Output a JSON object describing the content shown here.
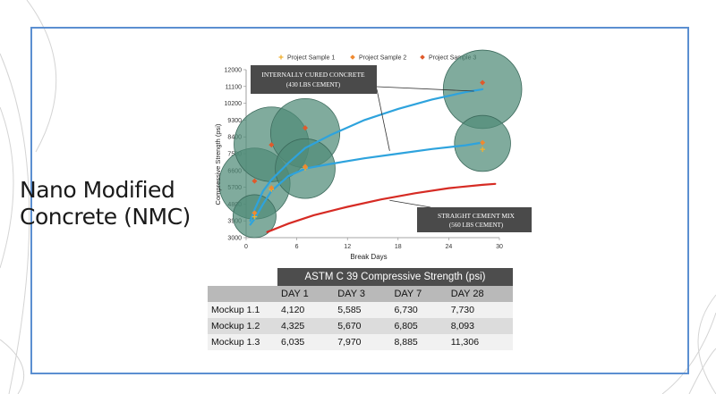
{
  "slide_title": {
    "line1": "Nano Modified",
    "line2": "Concrete (NMC)"
  },
  "colors": {
    "frame": "#5b8fd1",
    "blue_curve": "#2ea3dd",
    "red_curve": "#d62b24",
    "bubble": "#4f8a77",
    "marker": "#f0a830"
  },
  "chart_data": {
    "type": "scatter",
    "xlabel": "Break Days",
    "ylabel": "Compressive Strength (psi)",
    "xlim": [
      0,
      30
    ],
    "ylim": [
      3000,
      12000
    ],
    "x_ticks": [
      "0",
      "6",
      "12",
      "18",
      "24",
      "30"
    ],
    "y_ticks": [
      "3000",
      "3900",
      "4800",
      "5700",
      "6600",
      "7500",
      "8400",
      "9300",
      "10200",
      "11100",
      "12000"
    ],
    "legend_position": "top",
    "series": [
      {
        "name": "Project Sample 1",
        "color": "#f0b030",
        "marker": "+",
        "points": [
          [
            1,
            4120
          ],
          [
            3,
            5585
          ],
          [
            7,
            6730
          ],
          [
            28,
            7730
          ]
        ]
      },
      {
        "name": "Project Sample 2",
        "color": "#f08a30",
        "marker": "diamond",
        "points": [
          [
            1,
            4325
          ],
          [
            3,
            5670
          ],
          [
            7,
            6805
          ],
          [
            28,
            8093
          ]
        ]
      },
      {
        "name": "Project Sample 3",
        "color": "#e05a2b",
        "marker": "diamond",
        "points": [
          [
            1,
            6035
          ],
          [
            3,
            7970
          ],
          [
            7,
            8885
          ],
          [
            28,
            11306
          ]
        ]
      }
    ],
    "curves": [
      {
        "color": "#2ea3dd",
        "points": [
          [
            0.5,
            3900
          ],
          [
            1,
            4500
          ],
          [
            2,
            5500
          ],
          [
            3,
            6100
          ],
          [
            5,
            7000
          ],
          [
            7,
            7800
          ],
          [
            10,
            8500
          ],
          [
            14,
            9300
          ],
          [
            18,
            9900
          ],
          [
            22,
            10400
          ],
          [
            26,
            10800
          ],
          [
            28,
            10950
          ]
        ]
      },
      {
        "color": "#2ea3dd",
        "points": [
          [
            0.5,
            3700
          ],
          [
            1,
            4000
          ],
          [
            2,
            4800
          ],
          [
            3,
            5500
          ],
          [
            5,
            6300
          ],
          [
            7,
            6700
          ],
          [
            10,
            6950
          ],
          [
            14,
            7250
          ],
          [
            18,
            7500
          ],
          [
            22,
            7750
          ],
          [
            26,
            7950
          ],
          [
            28,
            8100
          ]
        ]
      },
      {
        "color": "#d62b24",
        "points": [
          [
            2.5,
            3300
          ],
          [
            5,
            3750
          ],
          [
            8,
            4200
          ],
          [
            12,
            4650
          ],
          [
            16,
            5050
          ],
          [
            20,
            5380
          ],
          [
            24,
            5650
          ],
          [
            28,
            5830
          ],
          [
            29.5,
            5880
          ]
        ]
      }
    ],
    "bubbles": [
      {
        "x": 1,
        "y": 5900,
        "r": 1900
      },
      {
        "x": 1,
        "y": 4150,
        "r": 1150
      },
      {
        "x": 3,
        "y": 8000,
        "r": 2000
      },
      {
        "x": 7,
        "y": 8600,
        "r": 1850
      },
      {
        "x": 7,
        "y": 6700,
        "r": 1600
      },
      {
        "x": 28,
        "y": 10950,
        "r": 2100
      },
      {
        "x": 28,
        "y": 8050,
        "r": 1500
      }
    ],
    "annotations": [
      {
        "line1": "INTERNALLY CURED CONCRETE",
        "line2": "(430 LBS CEMENT)"
      },
      {
        "line1": "STRAIGHT CEMENT MIX",
        "line2": "(560 LBS CEMENT)"
      }
    ]
  },
  "table": {
    "title": "ASTM C 39 Compressive Strength (psi)",
    "columns": [
      "DAY 1",
      "DAY 3",
      "DAY 7",
      "DAY 28"
    ],
    "rows": [
      {
        "label": "Mockup 1.1",
        "values": [
          "4,120",
          "5,585",
          "6,730",
          "7,730"
        ]
      },
      {
        "label": "Mockup 1.2",
        "values": [
          "4,325",
          "5,670",
          "6,805",
          "8,093"
        ]
      },
      {
        "label": "Mockup 1.3",
        "values": [
          "6,035",
          "7,970",
          "8,885",
          "11,306"
        ]
      }
    ]
  }
}
